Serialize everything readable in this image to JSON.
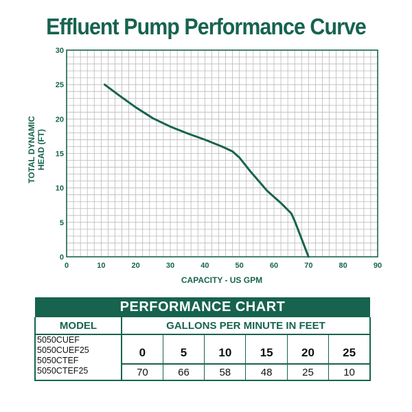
{
  "title": "Effluent Pump Performance Curve",
  "colors": {
    "accent": "#17634f",
    "grid": "#b9b9b9",
    "curve": "#17634f",
    "text": "#111111"
  },
  "chart_data": {
    "type": "line",
    "title": "Effluent Pump Performance Curve",
    "xlabel": "CAPACITY - US GPM",
    "ylabel_line1": "TOTAL DYNAMIC",
    "ylabel_line2": "HEAD (FT)",
    "xlim": [
      0,
      90
    ],
    "ylim": [
      0,
      30
    ],
    "x_ticks": [
      0,
      10,
      20,
      30,
      40,
      50,
      60,
      70,
      80,
      90
    ],
    "y_ticks": [
      0,
      5,
      10,
      15,
      20,
      25,
      30
    ],
    "grid": true,
    "series": [
      {
        "x": [
          11,
          15,
          20,
          25,
          30,
          35,
          40,
          45,
          48,
          50,
          53,
          58,
          62,
          65,
          66,
          68,
          70
        ],
        "y": [
          25,
          23.5,
          21.7,
          20.1,
          18.9,
          17.9,
          17,
          16,
          15.3,
          14.4,
          12.5,
          9.6,
          7.8,
          6.3,
          5.2,
          2.6,
          0
        ]
      }
    ]
  },
  "table": {
    "title": "PERFORMANCE CHART",
    "model_header": "MODEL",
    "gpm_header": "GALLONS PER MINUTE IN FEET",
    "models": [
      "5050CUEF",
      "5050CUEF25",
      "5050CTEF",
      "5050CTEF25"
    ],
    "feet": [
      "0",
      "5",
      "10",
      "15",
      "20",
      "25"
    ],
    "gpm": [
      "70",
      "66",
      "58",
      "48",
      "25",
      "10"
    ]
  }
}
